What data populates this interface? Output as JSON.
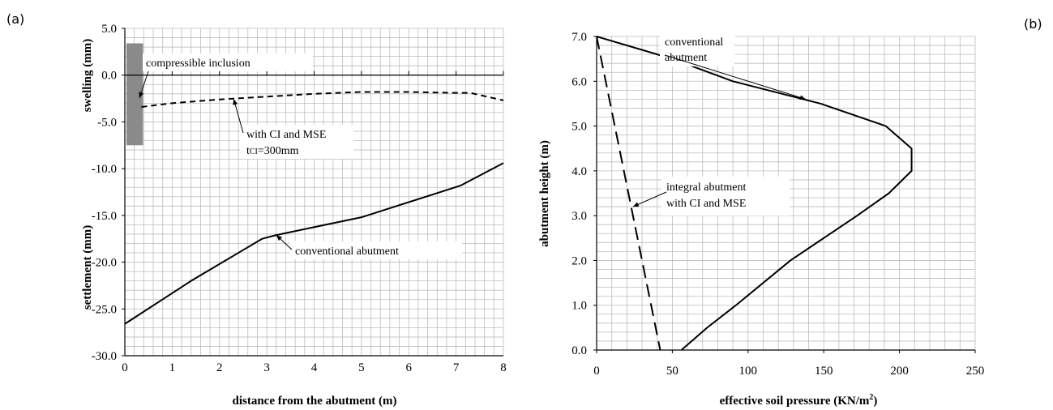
{
  "panel_labels": {
    "left": "(a)",
    "right": "(b)"
  },
  "chart_data": [
    {
      "type": "line",
      "xlabel": "distance from the abutment (m)",
      "ylabel_upper": "swelling (mm)",
      "ylabel_lower": "settlement (mm)",
      "xlim": [
        0,
        8
      ],
      "ylim": [
        -30,
        5
      ],
      "x_ticks": [
        "0",
        "1",
        "2",
        "3",
        "4",
        "5",
        "6",
        "7",
        "8"
      ],
      "y_ticks": [
        "5.0",
        "0.0",
        "-5.0",
        "-10.0",
        "-15.0",
        "-20.0",
        "-25.0",
        "-30.0"
      ],
      "grid": true,
      "series": [
        {
          "name": "with CI and MSE",
          "style": "dashed",
          "x": [
            0.35,
            1,
            2,
            3,
            4,
            5,
            6,
            7,
            7.3,
            8
          ],
          "y": [
            -3.4,
            -3.0,
            -2.6,
            -2.3,
            -2.0,
            -1.8,
            -1.8,
            -1.9,
            -1.9,
            -2.7
          ]
        },
        {
          "name": "conventional abutment",
          "style": "solid",
          "x": [
            0,
            1.4,
            2.5,
            2.9,
            3.2,
            5.0,
            7.1,
            8.0
          ],
          "y": [
            -26.6,
            -22.0,
            -18.7,
            -17.5,
            -17.1,
            -15.2,
            -11.8,
            -9.4
          ]
        }
      ],
      "annotations": {
        "compressible_inclusion": "compressible inclusion",
        "ci_line1": "with CI and MSE",
        "ci_line2_prefix": "t",
        "ci_line2_sub": "CI",
        "ci_line2_suffix": "=300mm",
        "conventional": "conventional abutment"
      },
      "compressible_inclusion_region": {
        "x": [
          0,
          0.35
        ],
        "y": [
          -7.5,
          3.4
        ]
      }
    },
    {
      "type": "line",
      "xlabel_prefix": "effective soil pressure (KN/m",
      "xlabel_sup": "2",
      "xlabel_suffix": ")",
      "ylabel": "abutment  height  (m)",
      "xlim": [
        0,
        250
      ],
      "ylim": [
        0,
        7
      ],
      "x_ticks": [
        "0",
        "50",
        "100",
        "150",
        "200",
        "250"
      ],
      "y_ticks": [
        "0.0",
        "1.0",
        "2.0",
        "3.0",
        "4.0",
        "5.0",
        "6.0",
        "7.0"
      ],
      "grid": true,
      "series": [
        {
          "name": "conventional abutment",
          "style": "solid",
          "x": [
            0,
            50,
            90,
            148,
            191,
            208,
            208,
            193,
            172,
            128,
            92,
            73,
            56
          ],
          "y": [
            7.0,
            6.5,
            6.0,
            5.5,
            5.0,
            4.5,
            4.0,
            3.5,
            3.0,
            2.0,
            1.0,
            0.5,
            0.0
          ]
        },
        {
          "name": "integral abutment with CI and MSE",
          "style": "dashed",
          "x": [
            0,
            42
          ],
          "y": [
            7.0,
            0.0
          ]
        }
      ],
      "annotations": {
        "conv_line1": "conventional",
        "conv_line2": "abutment",
        "int_line1": "integral abutment",
        "int_line2": "with CI and MSE"
      }
    }
  ]
}
